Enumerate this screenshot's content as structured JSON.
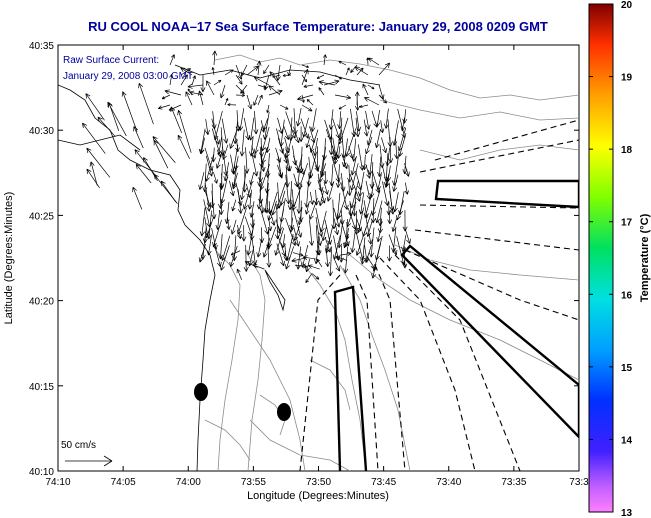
{
  "title": "RU COOL  NOAA–17  Sea Surface Temperature:  January 29, 2008 0209 GMT",
  "annotation": {
    "line1": "Raw Surface Current:",
    "line2": "January 29, 2008 03:00 GMT"
  },
  "scale_label": "50 cm/s",
  "axes": {
    "xlabel": "Longitude (Degrees:Minutes)",
    "ylabel": "Latitude (Degrees:Minutes)",
    "xticks": [
      "74:10",
      "74:05",
      "74:00",
      "73:55",
      "73:50",
      "73:45",
      "73:40",
      "73:35",
      "73:3"
    ],
    "yticks": [
      "40:35",
      "40:30",
      "40:25",
      "40:20",
      "40:15",
      "40:10"
    ]
  },
  "colorbar": {
    "label": "Temperature (°C)",
    "min": 13,
    "max": 20,
    "ticks": [
      "20",
      "19",
      "18",
      "17",
      "16",
      "15",
      "14",
      "13"
    ]
  },
  "colors": {
    "title": "#0000a0",
    "annotation": "#0000a0",
    "contour": "#8c8c8c",
    "land_fill": "#ffffff"
  }
}
